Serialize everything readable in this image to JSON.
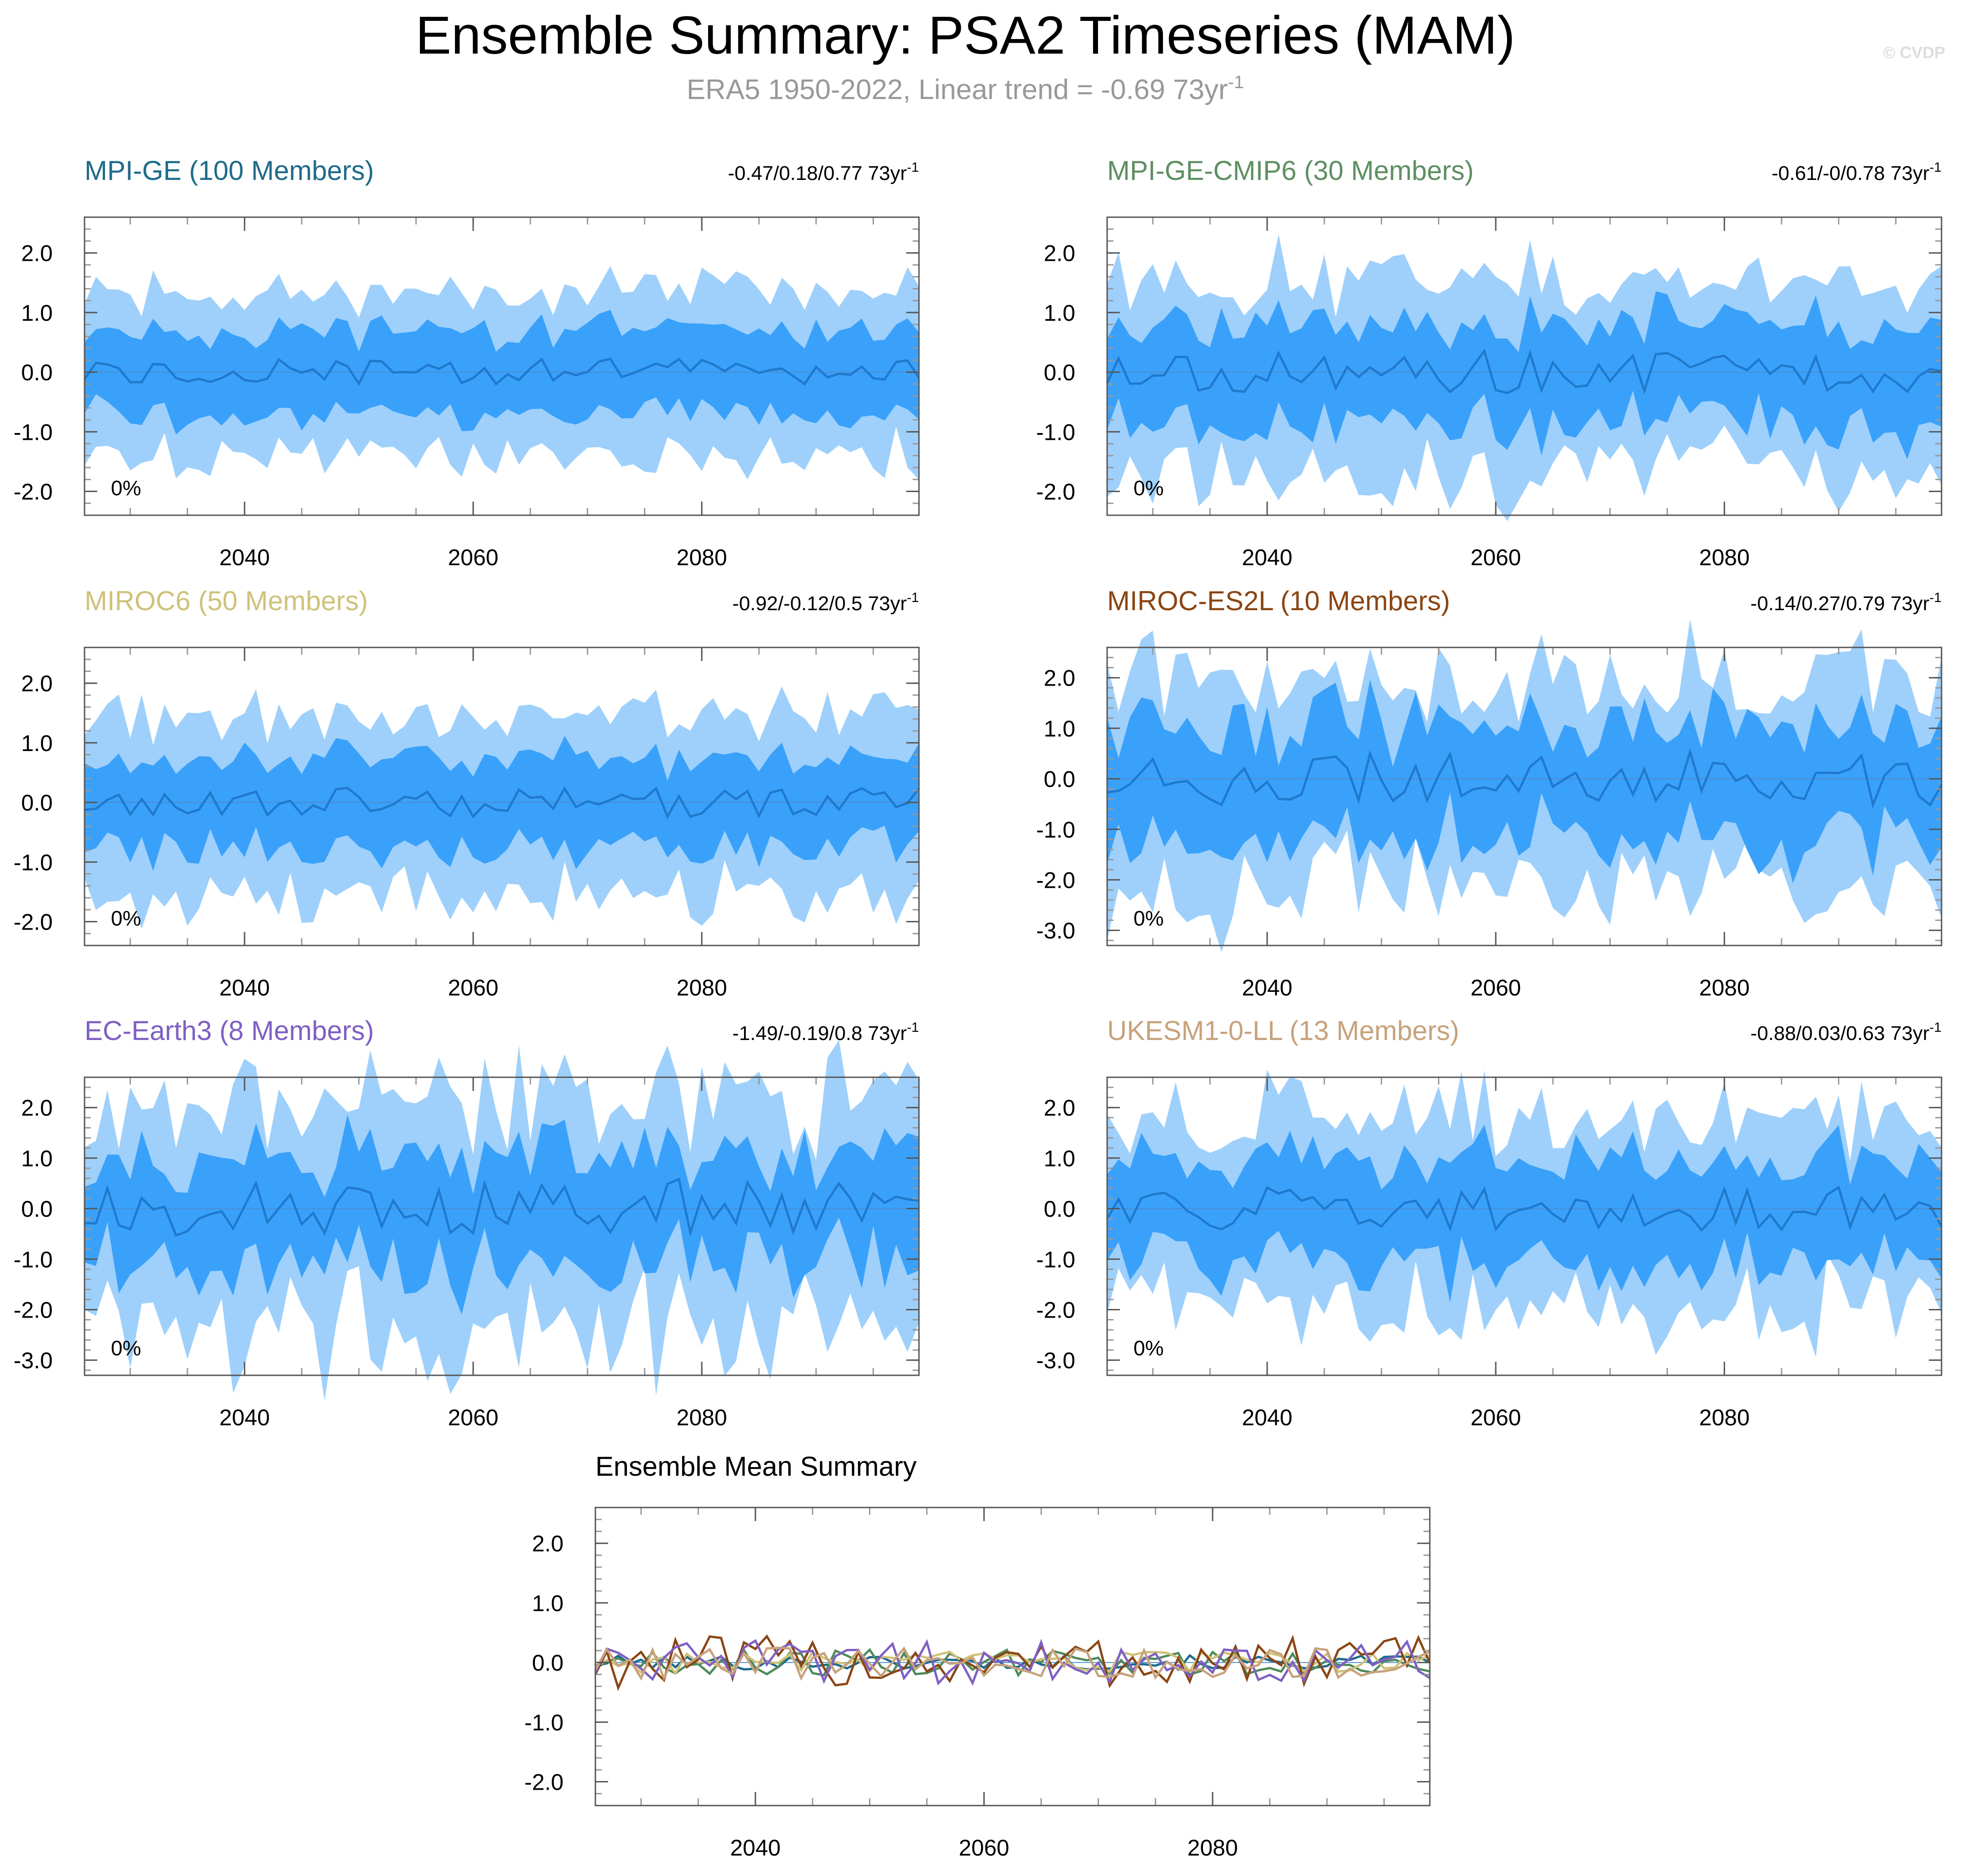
{
  "title": "Ensemble Summary: PSA2 Timeseries (MAM)",
  "subtitle": {
    "text": "ERA5 1950-2022, Linear trend = -0.69 73yr",
    "exponent": "-1"
  },
  "watermark": "© CVDP",
  "colors": {
    "outer_band": "#9ed0fb",
    "inner_band": "#3aa1fa",
    "mean_line": "#1f79cd",
    "zero_line": "#4a8fd6",
    "axis": "#555555",
    "grid_tick": "#999999",
    "text": "#000000",
    "subtitle": "#999999",
    "watermark": "#dddddd"
  },
  "chart_data": [
    {
      "type": "area",
      "panel": "MPI-GE",
      "title": "MPI-GE (100 Members)",
      "title_color": "#1f6b8a",
      "trend_label": "-0.47/0.18/0.77 73yr",
      "trend_exponent": "-1",
      "percent_label": "0%",
      "x_range": [
        2026,
        2099
      ],
      "x_ticks": [
        2040,
        2060,
        2080
      ],
      "x_tick_labels": [
        "2040",
        "2060",
        "2080"
      ],
      "y_range": [
        -2.4,
        2.6
      ],
      "y_ticks": [
        2.0,
        1.0,
        0.0,
        -1.0,
        -2.0
      ],
      "y_tick_labels": [
        "2.0",
        "1.0",
        "0.0",
        "-1.0",
        "-2.0"
      ],
      "volatility": 1.0,
      "inner_spread": 0.72,
      "outer_spread": 1.35,
      "seed": 11
    },
    {
      "type": "area",
      "panel": "MPI-GE-CMIP6",
      "title": "MPI-GE-CMIP6 (30 Members)",
      "title_color": "#5e8f61",
      "trend_label": "-0.61/-0/0.78 73yr",
      "trend_exponent": "-1",
      "percent_label": "0%",
      "x_range": [
        2026,
        2099
      ],
      "x_ticks": [
        2040,
        2060,
        2080
      ],
      "x_tick_labels": [
        "2040",
        "2060",
        "2080"
      ],
      "y_range": [
        -2.4,
        2.6
      ],
      "y_ticks": [
        2.0,
        1.0,
        0.0,
        -1.0,
        -2.0
      ],
      "y_tick_labels": [
        "2.0",
        "1.0",
        "0.0",
        "-1.0",
        "-2.0"
      ],
      "volatility": 1.6,
      "inner_spread": 0.75,
      "outer_spread": 1.45,
      "seed": 23
    },
    {
      "type": "area",
      "panel": "MIROC6",
      "title": "MIROC6 (50 Members)",
      "title_color": "#cfc27a",
      "trend_label": "-0.92/-0.12/0.5 73yr",
      "trend_exponent": "-1",
      "percent_label": "0%",
      "x_range": [
        2026,
        2099
      ],
      "x_ticks": [
        2040,
        2060,
        2080
      ],
      "x_tick_labels": [
        "2040",
        "2060",
        "2080"
      ],
      "y_range": [
        -2.4,
        2.6
      ],
      "y_ticks": [
        2.0,
        1.0,
        0.0,
        -1.0,
        -2.0
      ],
      "y_tick_labels": [
        "2.0",
        "1.0",
        "0.0",
        "-1.0",
        "-2.0"
      ],
      "volatility": 1.1,
      "inner_spread": 0.75,
      "outer_spread": 1.45,
      "seed": 37
    },
    {
      "type": "area",
      "panel": "MIROC-ES2L",
      "title": "MIROC-ES2L (10 Members)",
      "title_color": "#8b4513",
      "trend_label": "-0.14/0.27/0.79 73yr",
      "trend_exponent": "-1",
      "percent_label": "0%",
      "x_range": [
        2026,
        2099
      ],
      "x_ticks": [
        2040,
        2060,
        2080
      ],
      "x_tick_labels": [
        "2040",
        "2060",
        "2080"
      ],
      "y_range": [
        -3.3,
        2.6
      ],
      "y_ticks": [
        2.0,
        1.0,
        0.0,
        -1.0,
        -2.0,
        -3.0
      ],
      "y_tick_labels": [
        "2.0",
        "1.0",
        "0.0",
        "-1.0",
        "-2.0",
        "-3.0"
      ],
      "volatility": 2.4,
      "inner_spread": 0.85,
      "outer_spread": 1.6,
      "seed": 41
    },
    {
      "type": "area",
      "panel": "EC-Earth3",
      "title": "EC-Earth3 (8 Members)",
      "title_color": "#7f5fc4",
      "trend_label": "-1.49/-0.19/0.8 73yr",
      "trend_exponent": "-1",
      "percent_label": "0%",
      "x_range": [
        2026,
        2099
      ],
      "x_ticks": [
        2040,
        2060,
        2080
      ],
      "x_tick_labels": [
        "2040",
        "2060",
        "2080"
      ],
      "y_range": [
        -3.3,
        2.6
      ],
      "y_ticks": [
        2.0,
        1.0,
        0.0,
        -1.0,
        -2.0,
        -3.0
      ],
      "y_tick_labels": [
        "2.0",
        "1.0",
        "0.0",
        "-1.0",
        "-2.0",
        "-3.0"
      ],
      "volatility": 2.6,
      "inner_spread": 0.85,
      "outer_spread": 1.65,
      "seed": 53
    },
    {
      "type": "area",
      "panel": "UKESM1-0-LL",
      "title": "UKESM1-0-LL (13 Members)",
      "title_color": "#c7a27c",
      "trend_label": "-0.88/0.03/0.63 73yr",
      "trend_exponent": "-1",
      "percent_label": "0%",
      "x_range": [
        2026,
        2099
      ],
      "x_ticks": [
        2040,
        2060,
        2080
      ],
      "x_tick_labels": [
        "2040",
        "2060",
        "2080"
      ],
      "y_range": [
        -3.3,
        2.6
      ],
      "y_ticks": [
        2.0,
        1.0,
        0.0,
        -1.0,
        -2.0,
        -3.0
      ],
      "y_tick_labels": [
        "2.0",
        "1.0",
        "0.0",
        "-1.0",
        "-2.0",
        "-3.0"
      ],
      "volatility": 1.9,
      "inner_spread": 0.85,
      "outer_spread": 1.6,
      "seed": 67
    },
    {
      "type": "line",
      "panel": "Ensemble Mean",
      "title": "Ensemble Mean Summary",
      "x_range": [
        2026,
        2099
      ],
      "x_ticks": [
        2040,
        2060,
        2080
      ],
      "x_tick_labels": [
        "2040",
        "2060",
        "2080"
      ],
      "y_range": [
        -2.4,
        2.6
      ],
      "y_ticks": [
        2.0,
        1.0,
        0.0,
        -1.0,
        -2.0
      ],
      "y_tick_labels": [
        "2.0",
        "1.0",
        "0.0",
        "-1.0",
        "-2.0"
      ],
      "series": [
        {
          "name": "MPI-GE",
          "color": "#1f6b8a",
          "amplitude": 0.12,
          "seed": 101
        },
        {
          "name": "MPI-GE-CMIP6",
          "color": "#4e8a5a",
          "amplitude": 0.22,
          "seed": 102
        },
        {
          "name": "MIROC6",
          "color": "#cfc27a",
          "amplitude": 0.18,
          "seed": 103
        },
        {
          "name": "MIROC-ES2L",
          "color": "#8b4513",
          "amplitude": 0.45,
          "seed": 104
        },
        {
          "name": "EC-Earth3",
          "color": "#7f5fc4",
          "amplitude": 0.38,
          "seed": 105
        },
        {
          "name": "UKESM1-0-LL",
          "color": "#c7a27c",
          "amplitude": 0.28,
          "seed": 106
        }
      ]
    }
  ]
}
